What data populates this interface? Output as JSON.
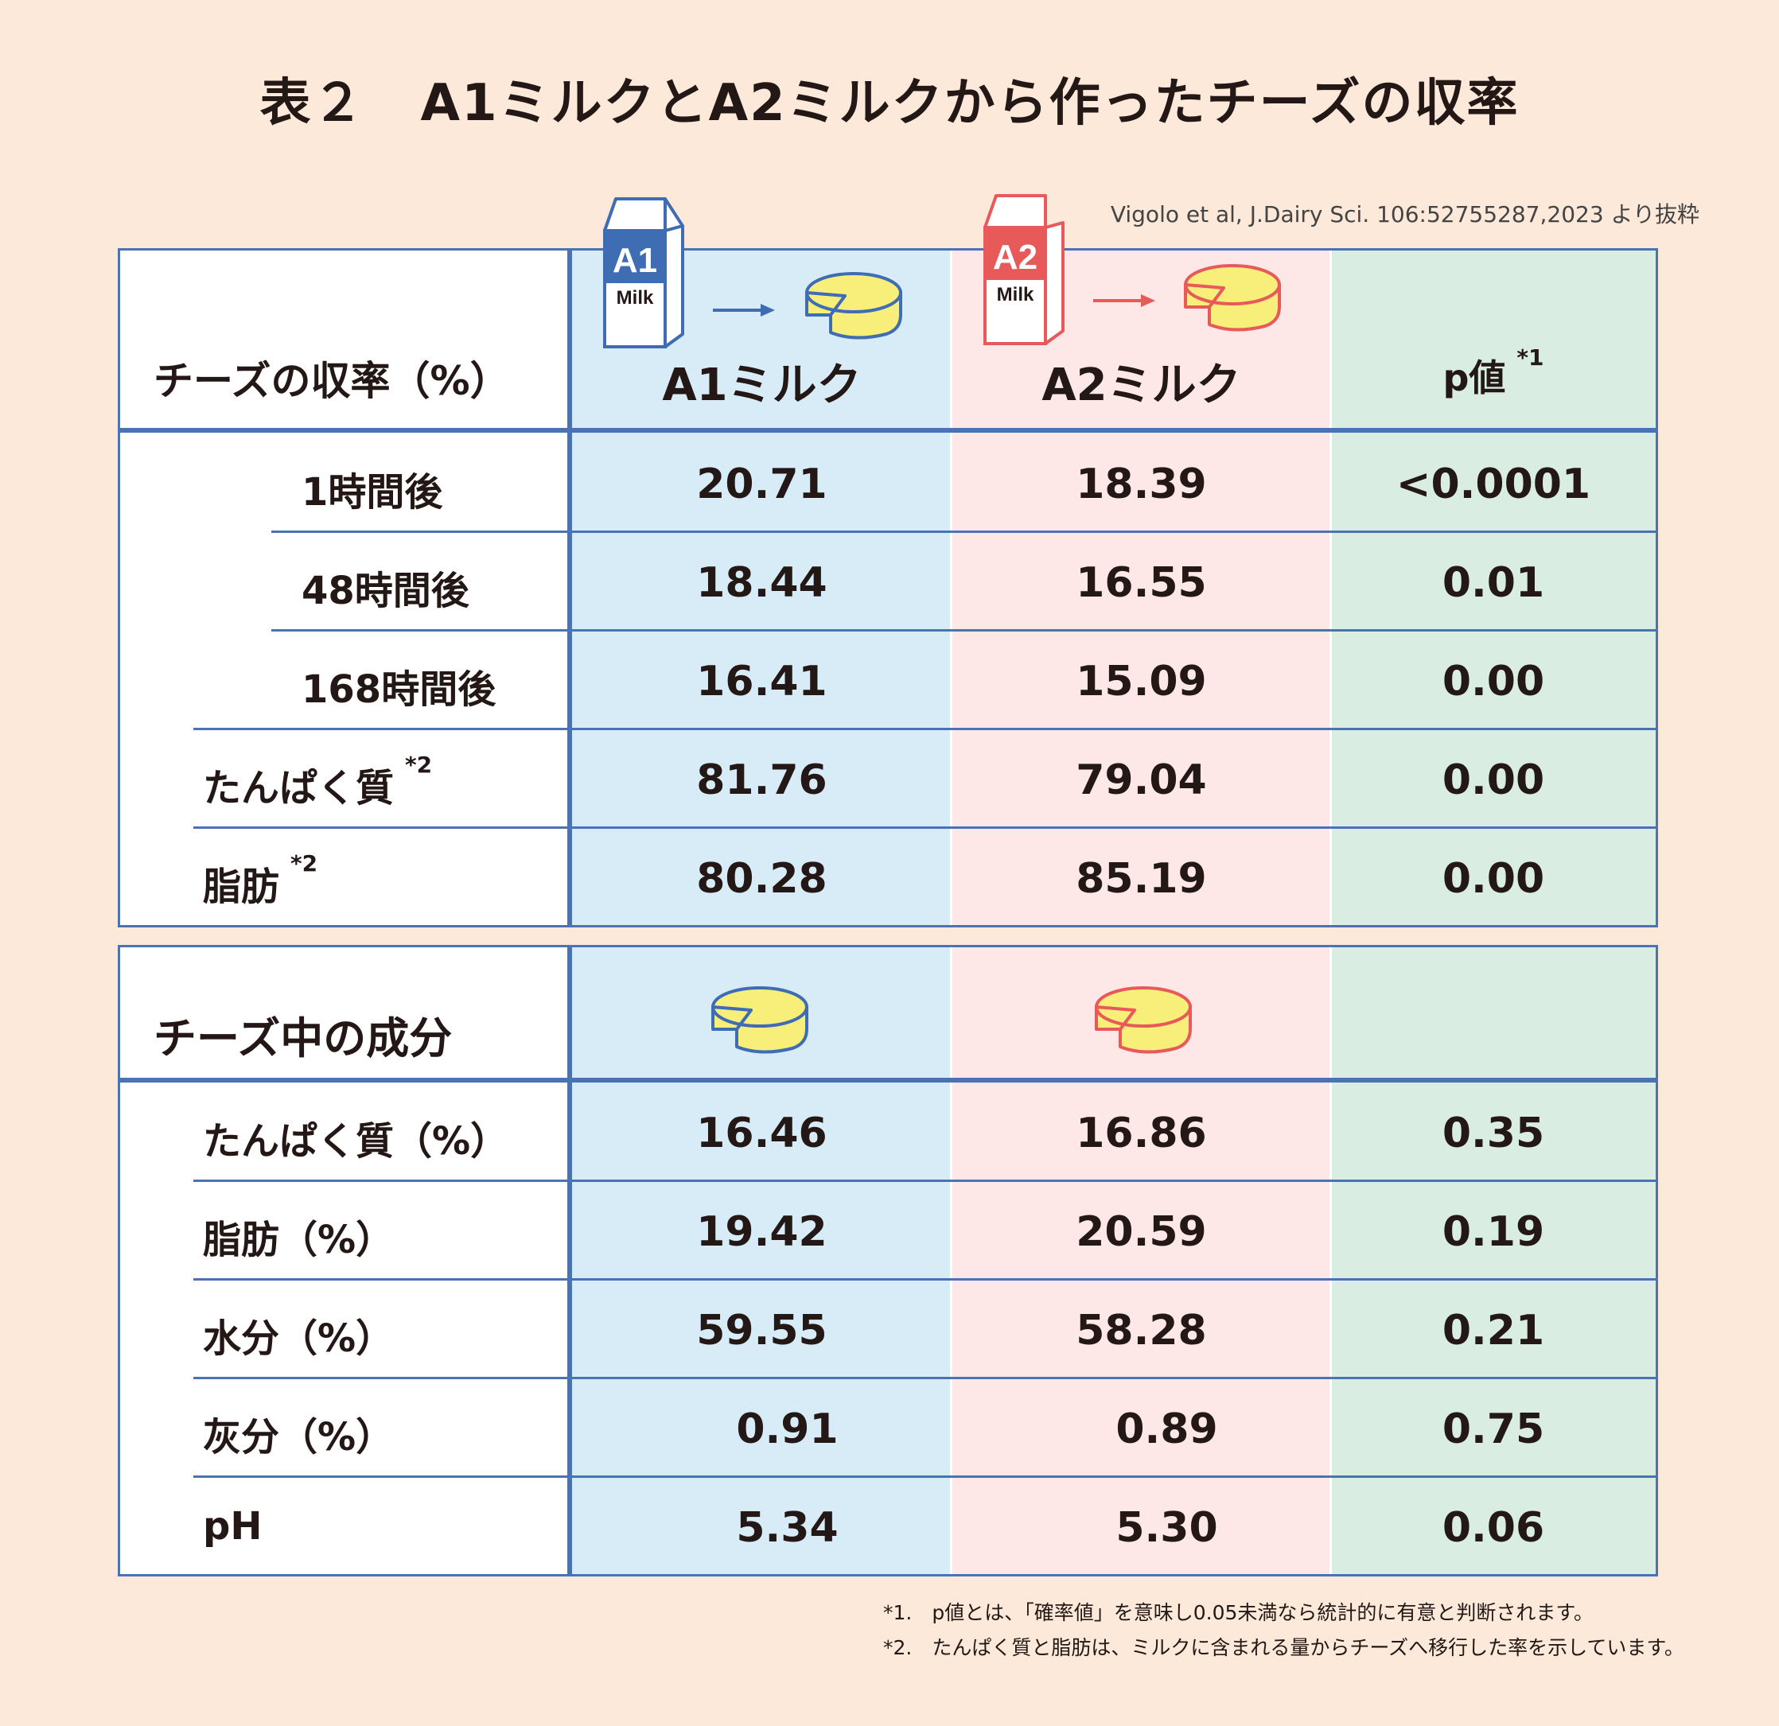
{
  "title": {
    "label": "表２",
    "text": "A1ミルクとA2ミルクから作ったチーズの収率"
  },
  "source": "Vigolo et al, J.Dairy Sci. 106:52755287,2023 より抜粋",
  "icons": {
    "a1_carton": {
      "tag": "A1",
      "milk": "Milk",
      "color": "#3f6db3"
    },
    "a2_carton": {
      "tag": "A2",
      "milk": "Milk",
      "color": "#e85a5a"
    }
  },
  "table1": {
    "row_header": "チーズの収率（%）",
    "col_a1": "A1ミルク",
    "col_a2": "A2ミルク",
    "col_p": "p値",
    "col_p_note": "*1",
    "rows": [
      {
        "label": "1時間後",
        "note": "",
        "a1": "20.71",
        "a2": "18.39",
        "p": "<0.0001"
      },
      {
        "label": "48時間後",
        "note": "",
        "a1": "18.44",
        "a2": "16.55",
        "p": "0.01"
      },
      {
        "label": "168時間後",
        "note": "",
        "a1": "16.41",
        "a2": "15.09",
        "p": "0.00"
      },
      {
        "label": "たんぱく質",
        "note": "*2",
        "a1": "81.76",
        "a2": "79.04",
        "p": "0.00"
      },
      {
        "label": "脂肪",
        "note": "*2",
        "a1": "80.28",
        "a2": "85.19",
        "p": "0.00"
      }
    ]
  },
  "table2": {
    "row_header": "チーズ中の成分",
    "rows": [
      {
        "label": "たんぱく質（%）",
        "a1": "16.46",
        "a2": "16.86",
        "p": "0.35"
      },
      {
        "label": "脂肪（%）",
        "a1": "19.42",
        "a2": "20.59",
        "p": "0.19"
      },
      {
        "label": "水分（%）",
        "a1": "59.55",
        "a2": "58.28",
        "p": "0.21"
      },
      {
        "label": "灰分（%）",
        "a1": "0.91",
        "a2": "0.89",
        "p": "0.75"
      },
      {
        "label": "pH",
        "a1": "5.34",
        "a2": "5.30",
        "p": "0.06"
      }
    ]
  },
  "footnotes": [
    "*1.　p値とは、「確率値」を意味し0.05未満なら統計的に有意と判断されます。",
    "*2.　たんぱく質と脂肪は、ミルクに含まれる量からチーズへ移行した率を示しています。"
  ]
}
